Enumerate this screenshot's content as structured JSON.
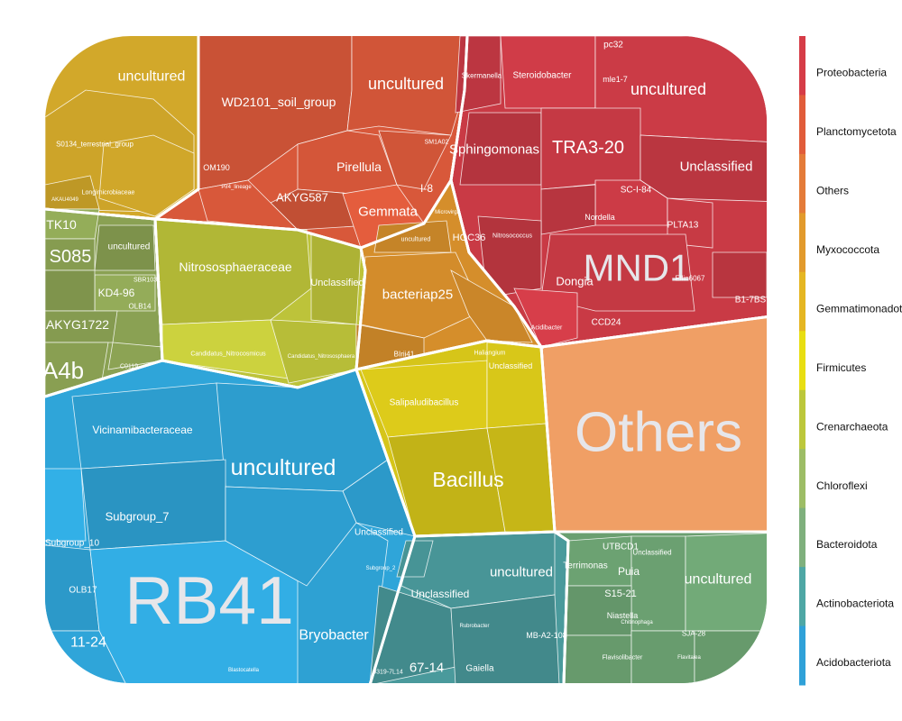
{
  "chart_data": {
    "type": "voronoi_treemap",
    "legend_position": "right",
    "legend": [
      {
        "name": "Proteobacteria",
        "color": "#d63c47"
      },
      {
        "name": "Planctomycetota",
        "color": "#e15c3a"
      },
      {
        "name": "Others",
        "color": "#e47b39"
      },
      {
        "name": "Myxococcota",
        "color": "#e29a2c"
      },
      {
        "name": "Gemmatimonadota",
        "color": "#e5b622"
      },
      {
        "name": "Firmicutes",
        "color": "#e8de12"
      },
      {
        "name": "Crenarchaeota",
        "color": "#bcc73b"
      },
      {
        "name": "Chloroflexi",
        "color": "#9dbd66"
      },
      {
        "name": "Bacteroidota",
        "color": "#7fb07d"
      },
      {
        "name": "Actinobacteriota",
        "color": "#4ea7a5"
      },
      {
        "name": "Acidobacteriota",
        "color": "#2fa1d8"
      }
    ],
    "groups": [
      {
        "phylum": "Gemmatimonadota",
        "color": "#d2a82a"
      },
      {
        "phylum": "Planctomycetota",
        "color": "#d8583a"
      },
      {
        "phylum": "Proteobacteria",
        "color": "#c93a45"
      },
      {
        "phylum": "Chloroflexi",
        "color": "#8aa153"
      },
      {
        "phylum": "Crenarchaeota",
        "color": "#bdc33a"
      },
      {
        "phylum": "Myxococcota",
        "color": "#d58e2b"
      },
      {
        "phylum": "Others",
        "color": "#e89a62"
      },
      {
        "phylum": "Acidobacteriota",
        "color": "#2fa5d9"
      },
      {
        "phylum": "Firmicutes",
        "color": "#d6c519"
      },
      {
        "phylum": "Actinobacteriota",
        "color": "#4a9a9c"
      },
      {
        "phylum": "Bacteroidota",
        "color": "#6a9f70"
      }
    ],
    "labels": [
      {
        "text": "uncultured",
        "phylum": "Gemmatimonadota"
      },
      {
        "text": "S0134_terrestrial_group",
        "phylum": "Gemmatimonadota"
      },
      {
        "text": "Longimicrobiaceae",
        "phylum": "Gemmatimonadota"
      },
      {
        "text": "AKAU4049",
        "phylum": "Gemmatimonadota"
      },
      {
        "text": "WD2101_soil_group",
        "phylum": "Planctomycetota"
      },
      {
        "text": "uncultured",
        "phylum": "Planctomycetota"
      },
      {
        "text": "Pirellula",
        "phylum": "Planctomycetota"
      },
      {
        "text": "Gemmata",
        "phylum": "Planctomycetota"
      },
      {
        "text": "AKYG587",
        "phylum": "Planctomycetota"
      },
      {
        "text": "OM190",
        "phylum": "Planctomycetota"
      },
      {
        "text": "Pir4_lineage",
        "phylum": "Planctomycetota"
      },
      {
        "text": "SM1A02",
        "phylum": "Planctomycetota"
      },
      {
        "text": "I-8",
        "phylum": "Planctomycetota"
      },
      {
        "text": "Steroidobacter",
        "phylum": "Proteobacteria"
      },
      {
        "text": "Skermanella",
        "phylum": "Proteobacteria"
      },
      {
        "text": "mle1-7",
        "phylum": "Proteobacteria"
      },
      {
        "text": "pc32",
        "phylum": "Proteobacteria"
      },
      {
        "text": "uncultured",
        "phylum": "Proteobacteria"
      },
      {
        "text": "Sphingomonas",
        "phylum": "Proteobacteria"
      },
      {
        "text": "TRA3-20",
        "phylum": "Proteobacteria"
      },
      {
        "text": "Unclassified",
        "phylum": "Proteobacteria"
      },
      {
        "text": "SC-I-84",
        "phylum": "Proteobacteria"
      },
      {
        "text": "Nordella",
        "phylum": "Proteobacteria"
      },
      {
        "text": "PLTA13",
        "phylum": "Proteobacteria"
      },
      {
        "text": "Nitrosococcus",
        "phylum": "Proteobacteria"
      },
      {
        "text": "Microvirga",
        "phylum": "Proteobacteria"
      },
      {
        "text": "MND1",
        "phylum": "Proteobacteria"
      },
      {
        "text": "Dongia",
        "phylum": "Proteobacteria"
      },
      {
        "text": "Ellin6067",
        "phylum": "Proteobacteria"
      },
      {
        "text": "B1-7BS",
        "phylum": "Proteobacteria"
      },
      {
        "text": "CCD24",
        "phylum": "Proteobacteria"
      },
      {
        "text": "Acidibacter",
        "phylum": "Proteobacteria"
      },
      {
        "text": "HOC36",
        "phylum": "Proteobacteria"
      },
      {
        "text": "TK10",
        "phylum": "Chloroflexi"
      },
      {
        "text": "uncultured",
        "phylum": "Chloroflexi"
      },
      {
        "text": "S085",
        "phylum": "Chloroflexi"
      },
      {
        "text": "KD4-96",
        "phylum": "Chloroflexi"
      },
      {
        "text": "SBR1031",
        "phylum": "Chloroflexi"
      },
      {
        "text": "OLB14",
        "phylum": "Chloroflexi"
      },
      {
        "text": "AKYG1722",
        "phylum": "Chloroflexi"
      },
      {
        "text": "A4b",
        "phylum": "Chloroflexi"
      },
      {
        "text": "C0119",
        "phylum": "Chloroflexi"
      },
      {
        "text": "Nitrososphaeraceae",
        "phylum": "Crenarchaeota"
      },
      {
        "text": "Unclassified",
        "phylum": "Crenarchaeota"
      },
      {
        "text": "Candidatus_Nitrocosmicus",
        "phylum": "Crenarchaeota"
      },
      {
        "text": "Candidatus_Nitrososphaera",
        "phylum": "Crenarchaeota"
      },
      {
        "text": "uncultured",
        "phylum": "Myxococcota"
      },
      {
        "text": "bacteriap25",
        "phylum": "Myxococcota"
      },
      {
        "text": "Haliangium",
        "phylum": "Myxococcota"
      },
      {
        "text": "BIrii41",
        "phylum": "Myxococcota"
      },
      {
        "text": "Others",
        "phylum": "Others"
      },
      {
        "text": "Vicinamibacteraceae",
        "phylum": "Acidobacteriota"
      },
      {
        "text": "uncultured",
        "phylum": "Acidobacteriota"
      },
      {
        "text": "Subgroup_7",
        "phylum": "Acidobacteriota"
      },
      {
        "text": "Subgroup_10",
        "phylum": "Acidobacteriota"
      },
      {
        "text": "RB41",
        "phylum": "Acidobacteriota"
      },
      {
        "text": "Bryobacter",
        "phylum": "Acidobacteriota"
      },
      {
        "text": "Unclassified",
        "phylum": "Acidobacteriota"
      },
      {
        "text": "11-24",
        "phylum": "Acidobacteriota"
      },
      {
        "text": "OLB17",
        "phylum": "Acidobacteriota"
      },
      {
        "text": "Subgroup_2",
        "phylum": "Acidobacteriota"
      },
      {
        "text": "Blastocatella",
        "phylum": "Acidobacteriota"
      },
      {
        "text": "Salipaludibacillus",
        "phylum": "Firmicutes"
      },
      {
        "text": "Unclassified",
        "phylum": "Firmicutes"
      },
      {
        "text": "Bacillus",
        "phylum": "Firmicutes"
      },
      {
        "text": "Unclassified",
        "phylum": "Actinobacteriota"
      },
      {
        "text": "uncultured",
        "phylum": "Actinobacteriota"
      },
      {
        "text": "MB-A2-108",
        "phylum": "Actinobacteriota"
      },
      {
        "text": "67-14",
        "phylum": "Actinobacteriota"
      },
      {
        "text": "Gaiella",
        "phylum": "Actinobacteriota"
      },
      {
        "text": "Rubrobacter",
        "phylum": "Actinobacteriota"
      },
      {
        "text": "0319-7L14",
        "phylum": "Actinobacteriota"
      },
      {
        "text": "UTBCD1",
        "phylum": "Bacteroidota"
      },
      {
        "text": "Terrimonas",
        "phylum": "Bacteroidota"
      },
      {
        "text": "Unclassified",
        "phylum": "Bacteroidota"
      },
      {
        "text": "Puia",
        "phylum": "Bacteroidota"
      },
      {
        "text": "S15-21",
        "phylum": "Bacteroidota"
      },
      {
        "text": "uncultured",
        "phylum": "Bacteroidota"
      },
      {
        "text": "Niastella",
        "phylum": "Bacteroidota"
      },
      {
        "text": "Chitinophaga",
        "phylum": "Bacteroidota"
      },
      {
        "text": "SJA-28",
        "phylum": "Bacteroidota"
      },
      {
        "text": "Flavisolibacter",
        "phylum": "Bacteroidota"
      },
      {
        "text": "Flavitalea",
        "phylum": "Bacteroidota"
      }
    ]
  }
}
